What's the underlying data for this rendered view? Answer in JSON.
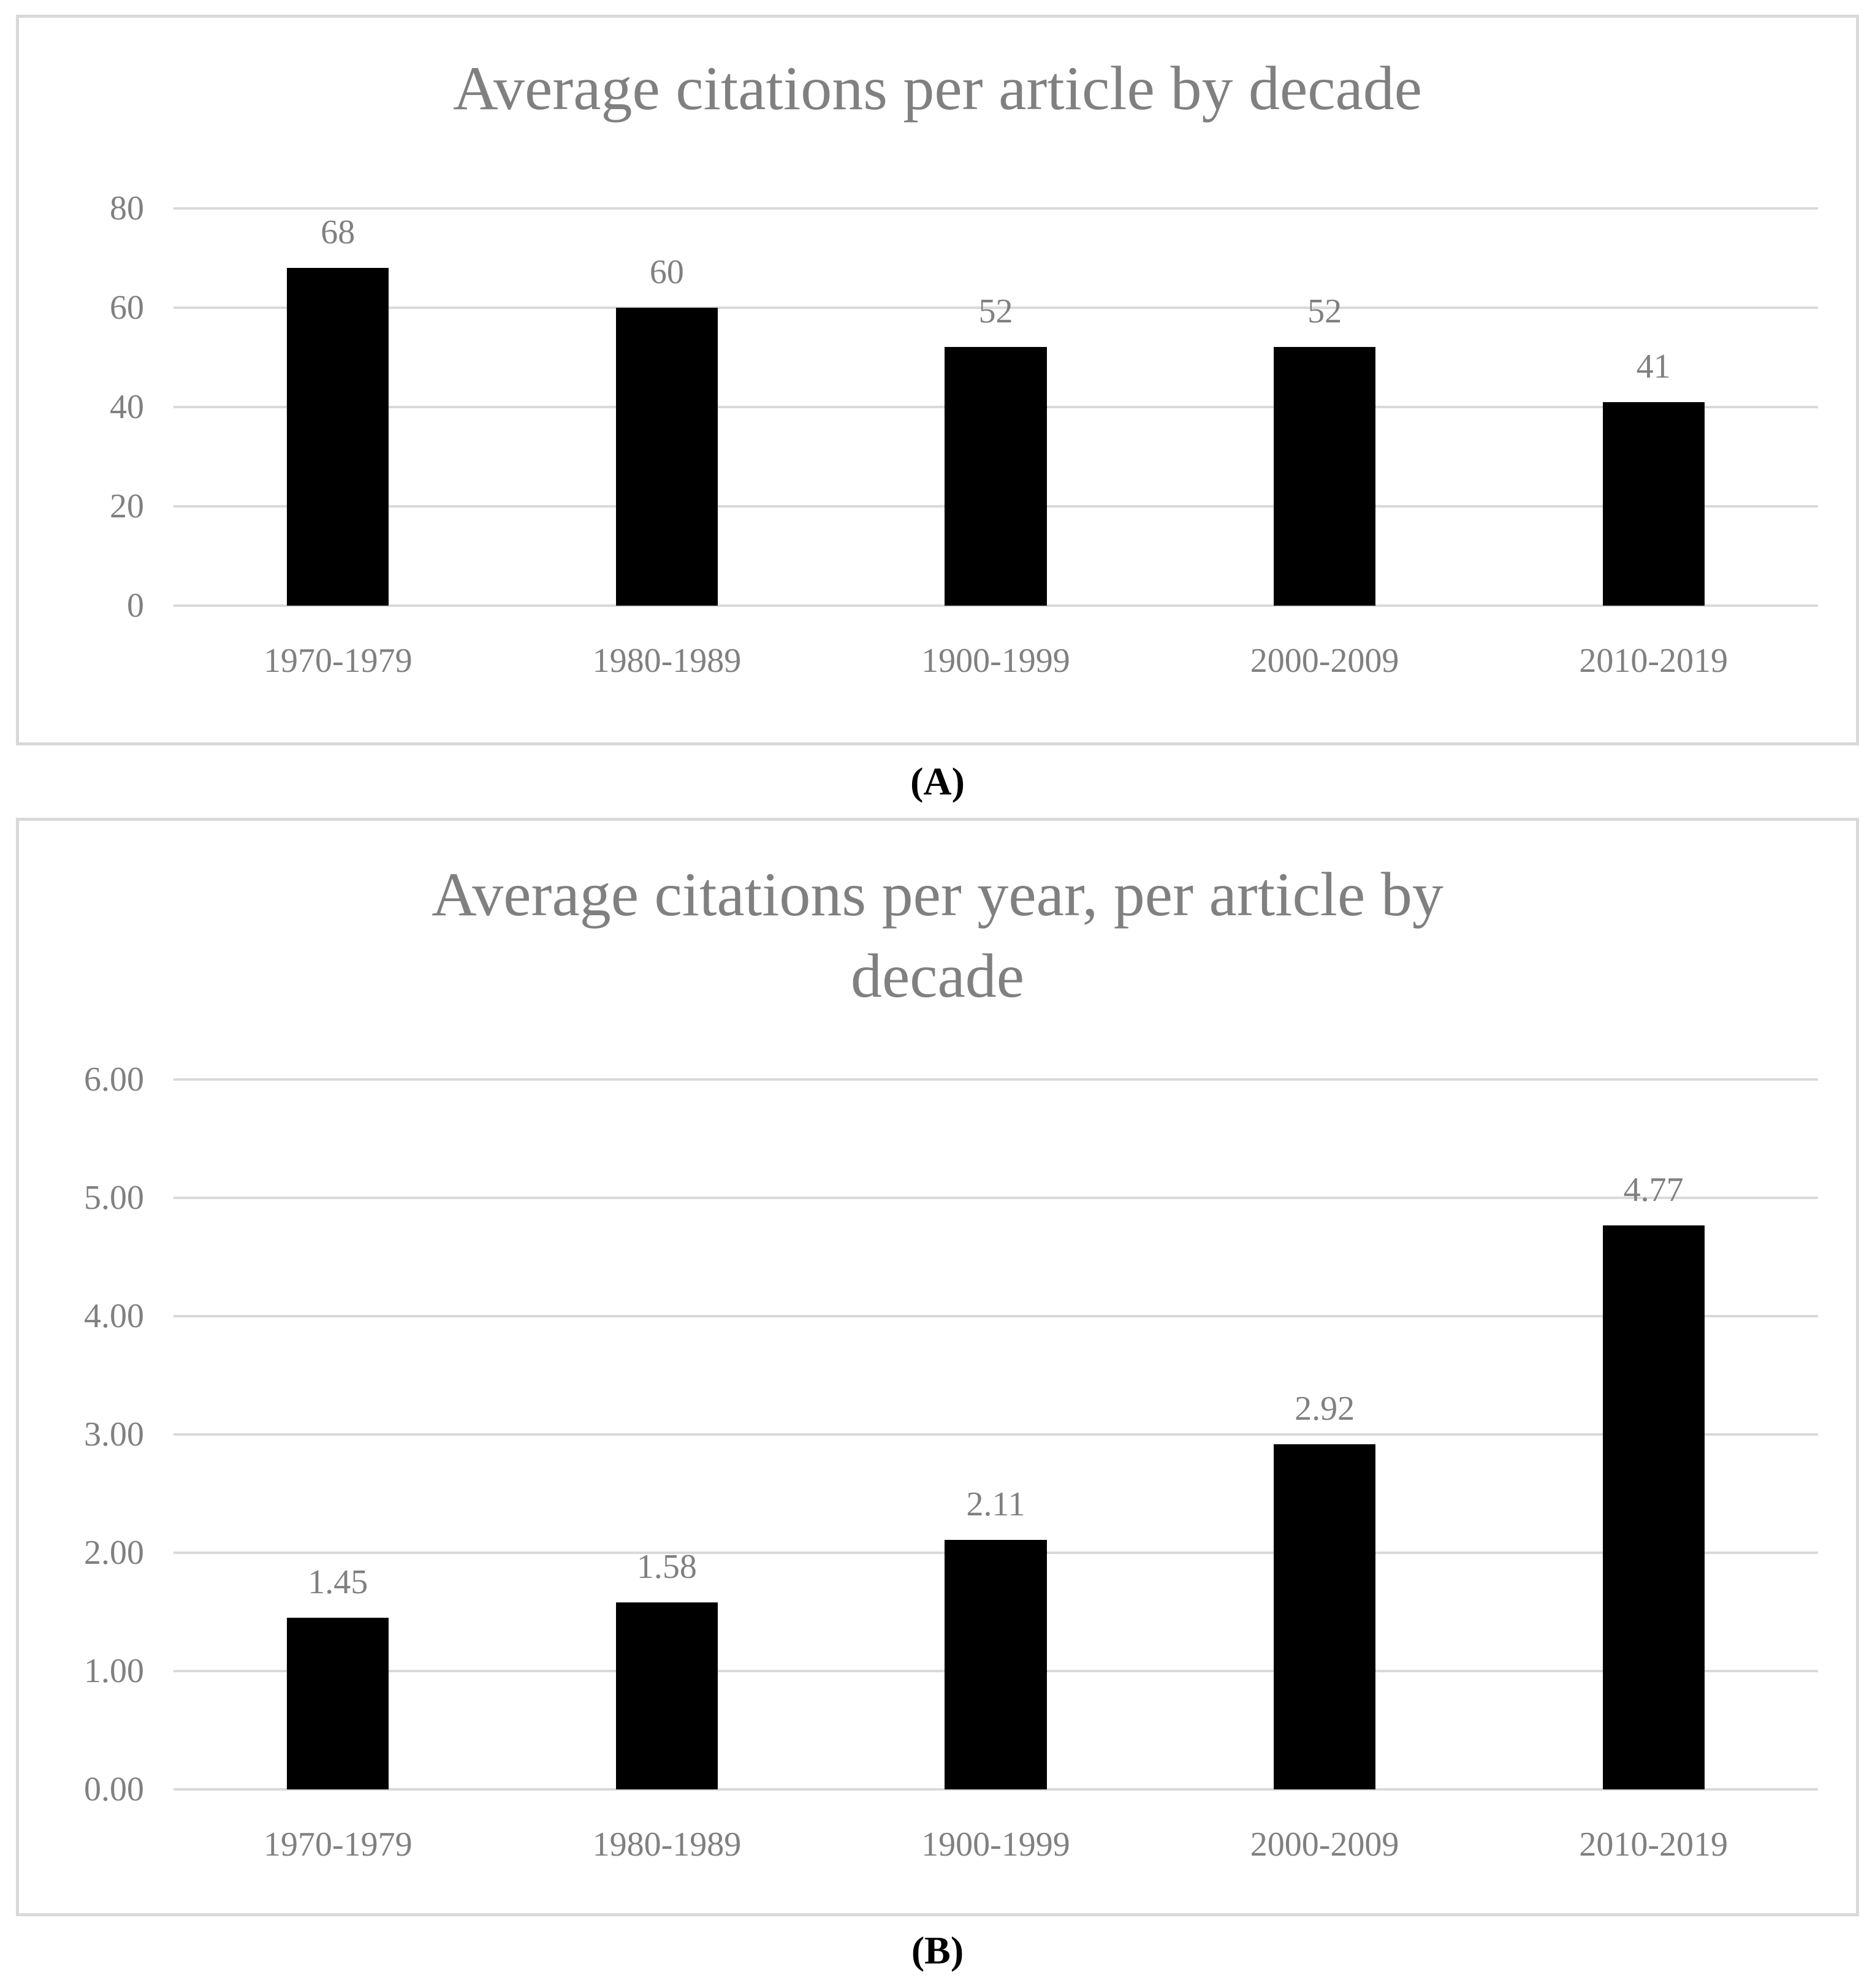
{
  "styles": {
    "bar_color": "#000000",
    "label_text_color": "#808080",
    "gridline_color": "#d9d9d9",
    "frame_color": "#d9d9d9",
    "caption_color": "#000000",
    "background": "#ffffff"
  },
  "panels": [
    {
      "caption": "(A)"
    },
    {
      "caption": "(B)"
    }
  ],
  "chart_data": [
    {
      "type": "bar",
      "title": "Average citations per article by decade",
      "title_lines": [
        "Average citations per article by decade"
      ],
      "categories": [
        "1970-1979",
        "1980-1989",
        "1900-1999",
        "2000-2009",
        "2010-2019"
      ],
      "values": [
        68,
        60,
        52,
        52,
        41
      ],
      "value_labels": [
        "68",
        "60",
        "52",
        "52",
        "41"
      ],
      "y_ticks": [
        {
          "label": "80",
          "value": 80
        },
        {
          "label": "60",
          "value": 60
        },
        {
          "label": "40",
          "value": 40
        },
        {
          "label": "20",
          "value": 20
        },
        {
          "label": "0",
          "value": 0
        }
      ],
      "ylim": [
        0,
        80
      ],
      "xlabel": "",
      "ylabel": "",
      "grid": true,
      "legend": "none",
      "bar_fill": "#000000",
      "caption": "(A)"
    },
    {
      "type": "bar",
      "title": "Average citations per year, per article by decade",
      "title_lines": [
        "Average citations per year, per article by",
        "decade"
      ],
      "categories": [
        "1970-1979",
        "1980-1989",
        "1900-1999",
        "2000-2009",
        "2010-2019"
      ],
      "values": [
        1.45,
        1.58,
        2.11,
        2.92,
        4.77
      ],
      "value_labels": [
        "1.45",
        "1.58",
        "2.11",
        "2.92",
        "4.77"
      ],
      "y_ticks": [
        {
          "label": "6.00",
          "value": 6
        },
        {
          "label": "5.00",
          "value": 5
        },
        {
          "label": "4.00",
          "value": 4
        },
        {
          "label": "3.00",
          "value": 3
        },
        {
          "label": "2.00",
          "value": 2
        },
        {
          "label": "1.00",
          "value": 1
        },
        {
          "label": "0.00",
          "value": 0
        }
      ],
      "ylim": [
        0,
        6
      ],
      "xlabel": "",
      "ylabel": "",
      "grid": true,
      "legend": "none",
      "bar_fill": "#000000",
      "caption": "(B)"
    }
  ]
}
